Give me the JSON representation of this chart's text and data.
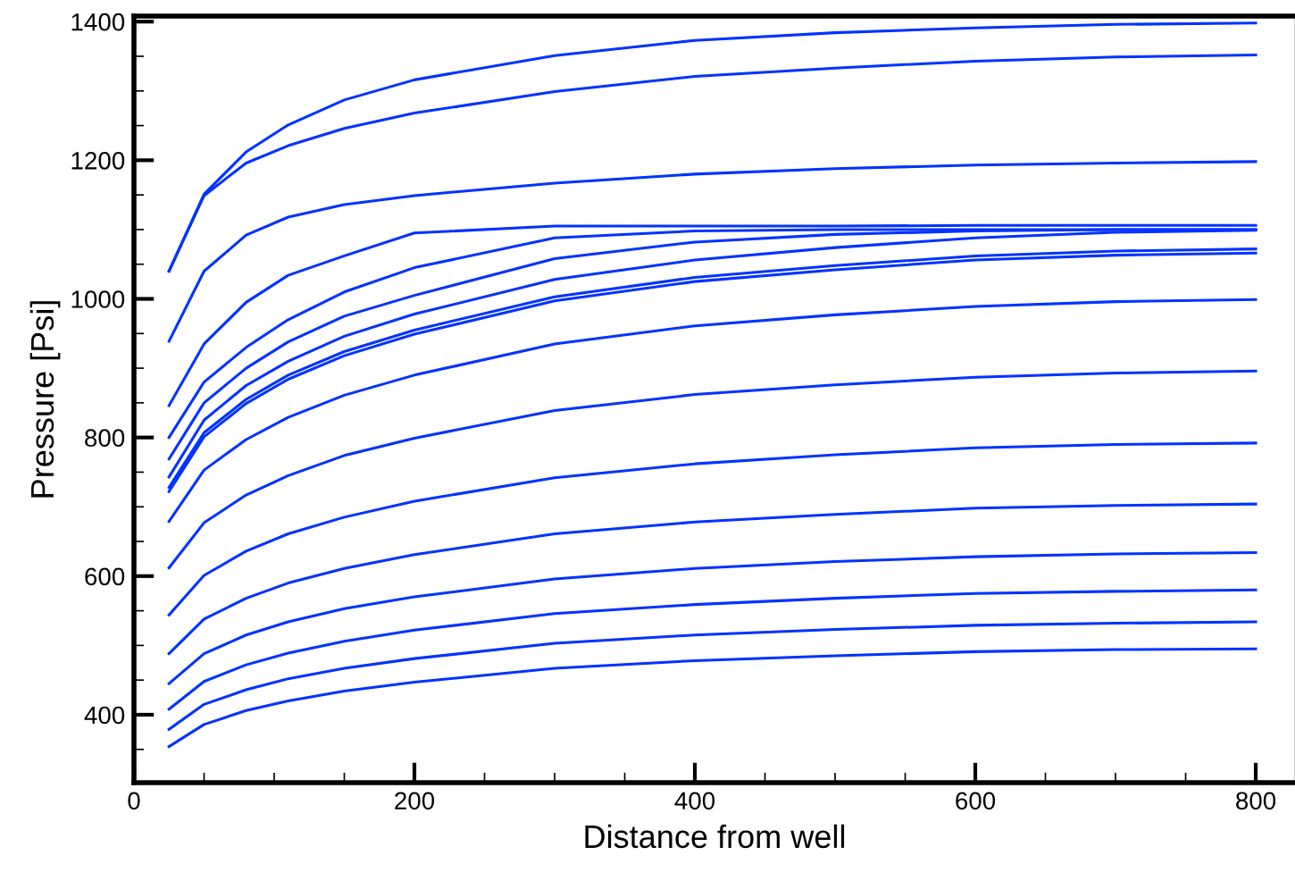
{
  "chart_data": {
    "type": "line",
    "xlabel": "Distance from well",
    "ylabel": "Pressure [Psi]",
    "x": [
      25,
      50,
      80,
      110,
      150,
      200,
      300,
      400,
      500,
      600,
      700,
      800
    ],
    "xlim": [
      0,
      828
    ],
    "ylim": [
      302,
      1408
    ],
    "xticks": [
      0,
      200,
      400,
      600,
      800
    ],
    "yticks": [
      400,
      600,
      800,
      1000,
      1200,
      1400
    ],
    "marker": "none",
    "line_style": "solid",
    "series": [
      {
        "color": "#0033ff",
        "values": [
          1040,
          1151,
          1212,
          1251,
          1287,
          1316,
          1351,
          1373,
          1384,
          1391,
          1396,
          1398
        ]
      },
      {
        "color": "#0033ff",
        "values": [
          1040,
          1149,
          1196,
          1221,
          1246,
          1268,
          1299,
          1321,
          1333,
          1343,
          1349,
          1352
        ]
      },
      {
        "color": "#0033ff",
        "values": [
          939,
          1040,
          1092,
          1118,
          1136,
          1149,
          1167,
          1180,
          1188,
          1193,
          1196,
          1198
        ]
      },
      {
        "color": "#0033ff",
        "values": [
          846,
          935,
          995,
          1034,
          1062,
          1095,
          1105,
          1105,
          1105,
          1106,
          1106,
          1106
        ]
      },
      {
        "color": "#0033ff",
        "values": [
          800,
          880,
          930,
          970,
          1010,
          1045,
          1088,
          1098,
          1100,
          1100,
          1100,
          1100
        ]
      },
      {
        "color": "#0033ff",
        "values": [
          769,
          850,
          900,
          938,
          975,
          1005,
          1058,
          1082,
          1093,
          1098,
          1100,
          1100
        ]
      },
      {
        "color": "#0033ff",
        "values": [
          743,
          825,
          875,
          910,
          946,
          978,
          1028,
          1056,
          1074,
          1088,
          1096,
          1099
        ]
      },
      {
        "color": "#0033ff",
        "values": [
          728,
          807,
          855,
          890,
          924,
          955,
          1003,
          1031,
          1048,
          1062,
          1069,
          1072
        ]
      },
      {
        "color": "#0033ff",
        "values": [
          722,
          801,
          849,
          884,
          918,
          949,
          997,
          1025,
          1042,
          1056,
          1063,
          1066
        ]
      },
      {
        "color": "#0033ff",
        "values": [
          679,
          753,
          797,
          829,
          861,
          890,
          935,
          961,
          977,
          989,
          996,
          999
        ]
      },
      {
        "color": "#0033ff",
        "values": [
          612,
          677,
          717,
          745,
          774,
          799,
          839,
          862,
          876,
          887,
          893,
          896
        ]
      },
      {
        "color": "#0033ff",
        "values": [
          544,
          601,
          636,
          661,
          685,
          708,
          742,
          762,
          775,
          785,
          790,
          792
        ]
      },
      {
        "color": "#0033ff",
        "values": [
          488,
          538,
          568,
          590,
          611,
          631,
          661,
          678,
          689,
          698,
          702,
          704
        ]
      },
      {
        "color": "#0033ff",
        "values": [
          445,
          488,
          515,
          534,
          553,
          570,
          596,
          611,
          621,
          628,
          632,
          634
        ]
      },
      {
        "color": "#0033ff",
        "values": [
          408,
          448,
          472,
          489,
          506,
          522,
          546,
          559,
          568,
          575,
          578,
          580
        ]
      },
      {
        "color": "#0033ff",
        "values": [
          379,
          415,
          436,
          452,
          467,
          481,
          503,
          515,
          523,
          529,
          532,
          534
        ]
      },
      {
        "color": "#0033ff",
        "values": [
          354,
          386,
          406,
          420,
          434,
          447,
          467,
          478,
          485,
          491,
          494,
          495
        ]
      }
    ]
  }
}
